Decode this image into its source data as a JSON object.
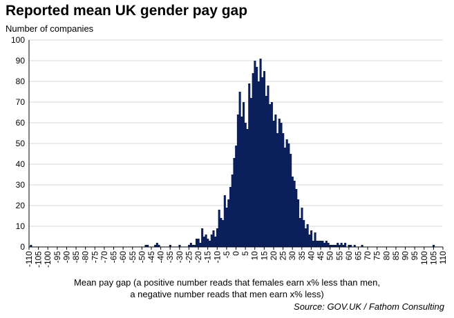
{
  "chart_data": {
    "type": "bar",
    "title": "Reported mean UK gender pay gap",
    "ylabel": "Number of companies",
    "xlabel_line1": "Mean pay gap (a positive number reads that females earn x% less than men,",
    "xlabel_line2": "a negative number reads that men earn x% less)",
    "source": "Source: GOV.UK / Fathom Consulting",
    "ylim": [
      0,
      100
    ],
    "y_ticks": [
      0,
      10,
      20,
      30,
      40,
      50,
      60,
      70,
      80,
      90,
      100
    ],
    "xlim": [
      -110,
      110
    ],
    "x_ticks": [
      -110,
      -105,
      -100,
      -95,
      -90,
      -85,
      -80,
      -75,
      -70,
      -65,
      -60,
      -55,
      -50,
      -45,
      -40,
      -35,
      -30,
      -25,
      -20,
      -15,
      -10,
      -5,
      0,
      5,
      10,
      15,
      20,
      25,
      30,
      35,
      40,
      45,
      50,
      55,
      60,
      65,
      70,
      75,
      80,
      85,
      90,
      95,
      100,
      105,
      110
    ],
    "grid": true,
    "bar_color": "#0a1f5c",
    "bin_width": 1,
    "bins": [
      [
        -109,
        1
      ],
      [
        -48,
        1
      ],
      [
        -47,
        1
      ],
      [
        -43,
        1
      ],
      [
        -42,
        2
      ],
      [
        -41,
        1
      ],
      [
        -35,
        1
      ],
      [
        -30,
        1
      ],
      [
        -25,
        1
      ],
      [
        -24,
        2
      ],
      [
        -23,
        1
      ],
      [
        -22,
        1
      ],
      [
        -21,
        4
      ],
      [
        -20,
        4
      ],
      [
        -19,
        2
      ],
      [
        -18,
        9
      ],
      [
        -17,
        5
      ],
      [
        -16,
        6
      ],
      [
        -15,
        4
      ],
      [
        -14,
        3
      ],
      [
        -13,
        6
      ],
      [
        -12,
        8
      ],
      [
        -11,
        5
      ],
      [
        -10,
        9
      ],
      [
        -9,
        18
      ],
      [
        -8,
        14
      ],
      [
        -7,
        13
      ],
      [
        -6,
        25
      ],
      [
        -5,
        19
      ],
      [
        -4,
        23
      ],
      [
        -3,
        29
      ],
      [
        -2,
        35
      ],
      [
        -1,
        43
      ],
      [
        0,
        49
      ],
      [
        1,
        64
      ],
      [
        2,
        75
      ],
      [
        3,
        63
      ],
      [
        4,
        70
      ],
      [
        5,
        60
      ],
      [
        6,
        57
      ],
      [
        7,
        79
      ],
      [
        8,
        72
      ],
      [
        9,
        84
      ],
      [
        10,
        90
      ],
      [
        11,
        87
      ],
      [
        12,
        80
      ],
      [
        13,
        91
      ],
      [
        14,
        82
      ],
      [
        15,
        85
      ],
      [
        16,
        73
      ],
      [
        17,
        78
      ],
      [
        18,
        69
      ],
      [
        19,
        70
      ],
      [
        20,
        61
      ],
      [
        21,
        64
      ],
      [
        22,
        55
      ],
      [
        23,
        62
      ],
      [
        24,
        60
      ],
      [
        25,
        55
      ],
      [
        26,
        48
      ],
      [
        27,
        52
      ],
      [
        28,
        50
      ],
      [
        29,
        45
      ],
      [
        30,
        34
      ],
      [
        31,
        32
      ],
      [
        32,
        28
      ],
      [
        33,
        23
      ],
      [
        34,
        14
      ],
      [
        35,
        19
      ],
      [
        36,
        13
      ],
      [
        37,
        9
      ],
      [
        38,
        11
      ],
      [
        39,
        6
      ],
      [
        40,
        8
      ],
      [
        41,
        3
      ],
      [
        42,
        7
      ],
      [
        43,
        3
      ],
      [
        44,
        3
      ],
      [
        45,
        3
      ],
      [
        46,
        3
      ],
      [
        47,
        2
      ],
      [
        48,
        3
      ],
      [
        49,
        2
      ],
      [
        50,
        1
      ],
      [
        51,
        1
      ],
      [
        52,
        1
      ],
      [
        53,
        1
      ],
      [
        54,
        2
      ],
      [
        55,
        1
      ],
      [
        56,
        2
      ],
      [
        57,
        1
      ],
      [
        58,
        2
      ],
      [
        60,
        1
      ],
      [
        61,
        1
      ],
      [
        63,
        1
      ],
      [
        67,
        1
      ],
      [
        105,
        1
      ]
    ]
  }
}
